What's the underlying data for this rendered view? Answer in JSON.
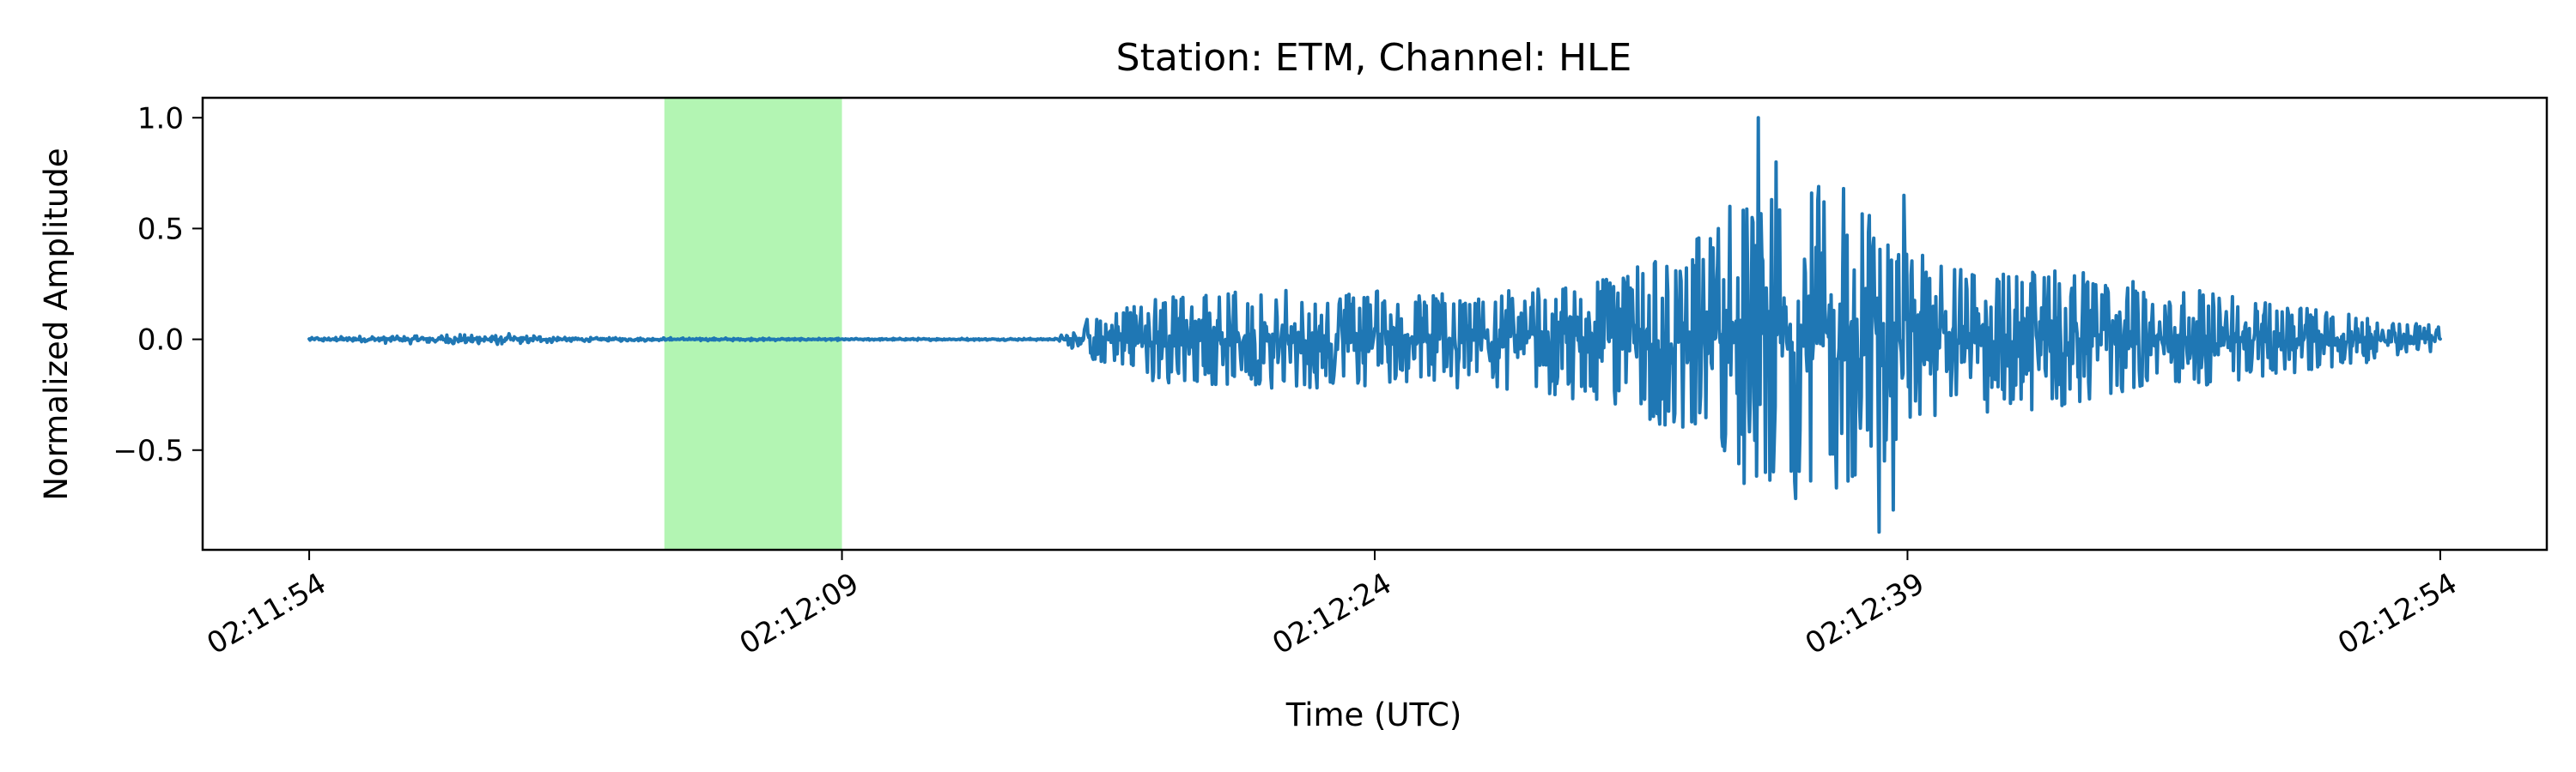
{
  "chart_data": {
    "type": "line",
    "title": "Station: ETM, Channel: HLE",
    "xlabel": "Time (UTC)",
    "ylabel": "Normalized Amplitude",
    "x_start": "02:11:54",
    "x_end": "02:12:54",
    "x_unit": "seconds",
    "xlim": [
      "02:11:51",
      "02:12:57"
    ],
    "ylim": [
      -0.95,
      1.09
    ],
    "x_ticks": [
      "02:11:54",
      "02:12:09",
      "02:12:24",
      "02:12:39",
      "02:12:54"
    ],
    "y_ticks": [
      {
        "value": 1.0,
        "label": "1.0"
      },
      {
        "value": 0.5,
        "label": "0.5"
      },
      {
        "value": 0.0,
        "label": "0.0"
      },
      {
        "value": -0.5,
        "label": "−0.5"
      }
    ],
    "highlight_window": {
      "start": "02:12:04",
      "end": "02:12:09",
      "color": "#b3f5b3"
    },
    "series": [
      {
        "color": "#1f77b4",
        "envelope_times": [
          "02:11:54",
          "02:11:59",
          "02:12:02",
          "02:12:08",
          "02:12:15",
          "02:12:16",
          "02:12:18",
          "02:12:21",
          "02:12:27",
          "02:12:31",
          "02:12:34",
          "02:12:36",
          "02:12:38",
          "02:12:40",
          "02:12:44",
          "02:12:50",
          "02:12:54"
        ],
        "envelope_amplitude": [
          0.01,
          0.03,
          0.01,
          0.005,
          0.005,
          0.1,
          0.2,
          0.22,
          0.22,
          0.3,
          0.55,
          0.75,
          0.62,
          0.35,
          0.3,
          0.15,
          0.06
        ],
        "peaks": [
          {
            "time": "02:12:34.0",
            "value": 0.6
          },
          {
            "time": "02:12:34.4",
            "value": -0.65
          },
          {
            "time": "02:12:34.8",
            "value": 1.0
          },
          {
            "time": "02:12:35.0",
            "value": -0.6
          },
          {
            "time": "02:12:35.3",
            "value": 0.8
          },
          {
            "time": "02:12:36.3",
            "value": 0.66
          },
          {
            "time": "02:12:37.2",
            "value": 0.68
          },
          {
            "time": "02:12:38.2",
            "value": -0.87
          },
          {
            "time": "02:12:38.6",
            "value": -0.77
          },
          {
            "time": "02:12:38.9",
            "value": 0.65
          }
        ]
      }
    ]
  }
}
